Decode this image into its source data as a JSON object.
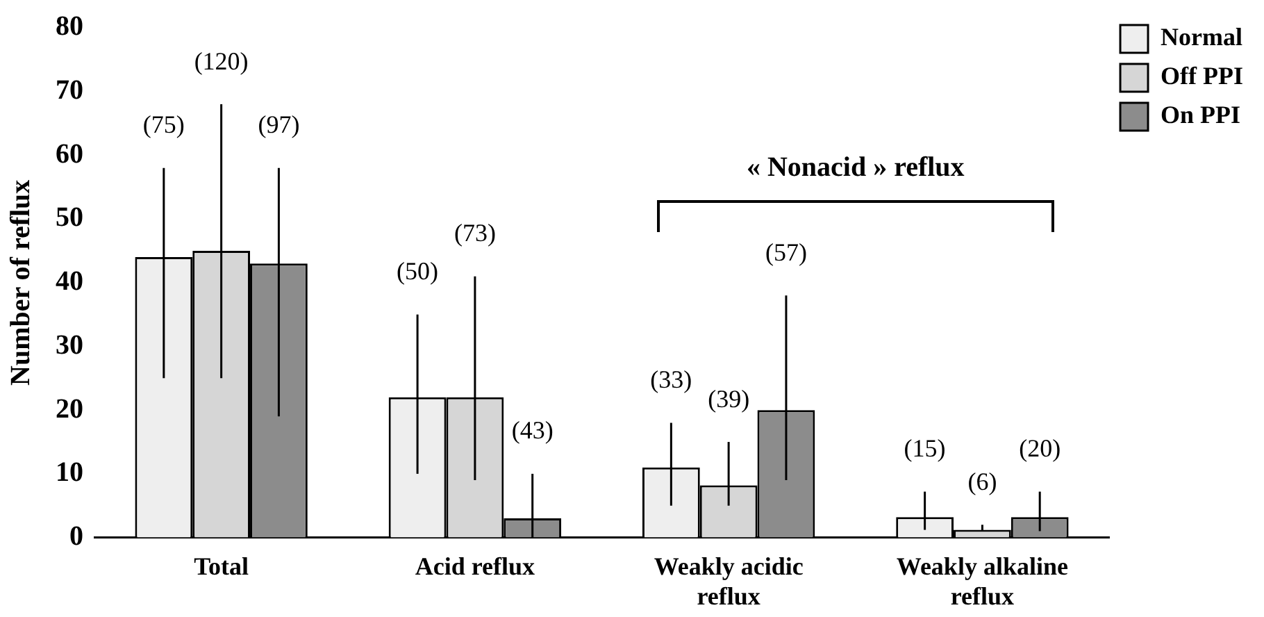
{
  "chart_data": {
    "type": "bar",
    "ylabel": "Number of reflux",
    "categories": [
      "Total",
      "Acid reflux",
      "Weakly acidic reflux",
      "Weakly alkaline reflux"
    ],
    "series": [
      {
        "name": "Normal",
        "color": "#eeeeee",
        "values": [
          44,
          22,
          11,
          3.2
        ],
        "errors": [
          [
            25,
            58
          ],
          [
            10,
            35
          ],
          [
            5,
            18
          ],
          [
            1.2,
            7.2
          ]
        ]
      },
      {
        "name": "Off PPI",
        "color": "#d6d6d6",
        "values": [
          45,
          22,
          8.2,
          1.2
        ],
        "errors": [
          [
            25,
            68
          ],
          [
            9,
            41
          ],
          [
            5,
            15
          ],
          [
            1,
            2
          ]
        ]
      },
      {
        "name": "On PPI",
        "color": "#8c8c8c",
        "values": [
          43,
          3,
          20,
          3.2
        ],
        "errors": [
          [
            19,
            58
          ],
          [
            0,
            10
          ],
          [
            9,
            38
          ],
          [
            1,
            7.2
          ]
        ]
      }
    ],
    "ylim": [
      0,
      80
    ],
    "yticks": [
      0,
      10,
      20,
      30,
      40,
      50,
      60,
      70,
      80
    ],
    "grid": false,
    "legend": "top right",
    "annotations": [
      "(75)",
      "(50)",
      "(33)",
      "(15)",
      "(120)",
      "(73)",
      "(39)",
      "(6)",
      "(97)",
      "(43)",
      "(57)",
      "(20)",
      "« Nonacid » reflux"
    ]
  }
}
